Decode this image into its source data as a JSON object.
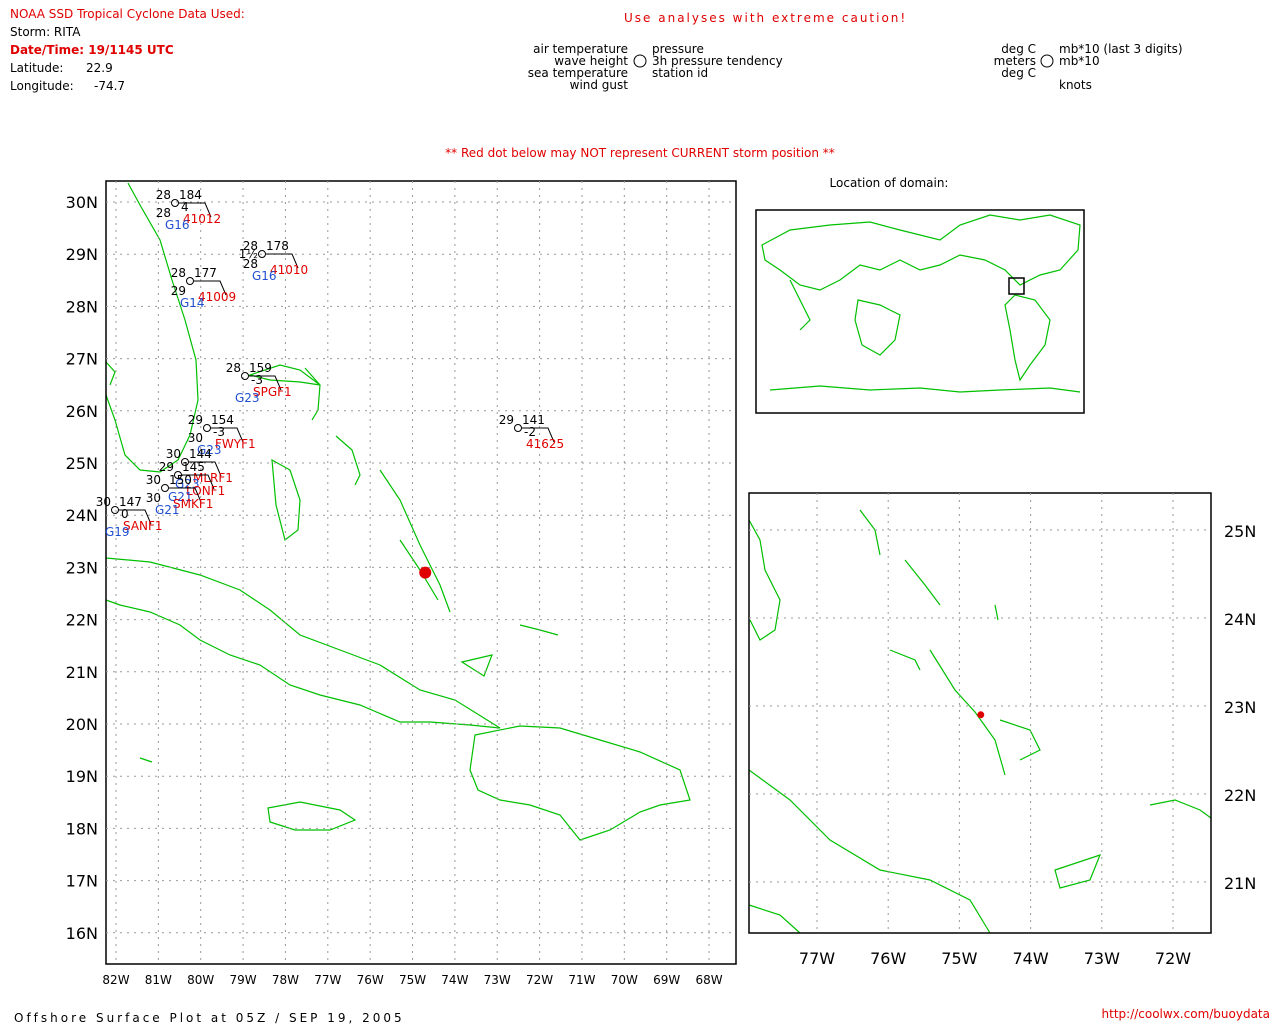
{
  "header": {
    "source": "NOAA SSD Tropical Cyclone Data Used:",
    "storm": "Storm: RITA",
    "datetime": "Date/Time: 19/1145 UTC",
    "latitude": {
      "label": "Latitude:",
      "value": 22.9
    },
    "longitude": {
      "label": "Longitude:",
      "value": -74.7
    },
    "caution": "Use analyses with extreme caution!"
  },
  "legend": {
    "left": [
      "air temperature",
      "wave height",
      "sea temperature",
      "wind gust"
    ],
    "right": [
      "pressure",
      "3h pressure tendency",
      "station id"
    ],
    "units_left": [
      "deg C",
      "meters",
      "deg C"
    ],
    "units_right": [
      "mb*10 (last 3 digits)",
      "mb*10",
      "knots"
    ]
  },
  "note": "** Red dot below may NOT represent CURRENT storm position **",
  "main_map": {
    "lat_ticks": [
      {
        "value": 30,
        "label": "30N"
      },
      {
        "value": 29,
        "label": "29N"
      },
      {
        "value": 28,
        "label": "28N"
      },
      {
        "value": 27,
        "label": "27N"
      },
      {
        "value": 26,
        "label": "26N"
      },
      {
        "value": 25,
        "label": "25N"
      },
      {
        "value": 24,
        "label": "24N"
      },
      {
        "value": 23,
        "label": "23N"
      },
      {
        "value": 22,
        "label": "22N"
      },
      {
        "value": 21,
        "label": "21N"
      },
      {
        "value": 20,
        "label": "20N"
      },
      {
        "value": 19,
        "label": "19N"
      },
      {
        "value": 18,
        "label": "18N"
      },
      {
        "value": 17,
        "label": "17N"
      },
      {
        "value": 16,
        "label": "16N"
      }
    ],
    "lon_ticks": [
      {
        "value": -82,
        "label": "82W"
      },
      {
        "value": -81,
        "label": "81W"
      },
      {
        "value": -80,
        "label": "80W"
      },
      {
        "value": -79,
        "label": "79W"
      },
      {
        "value": -78,
        "label": "78W"
      },
      {
        "value": -77,
        "label": "77W"
      },
      {
        "value": -76,
        "label": "76W"
      },
      {
        "value": -75,
        "label": "75W"
      },
      {
        "value": -74,
        "label": "74W"
      },
      {
        "value": -73,
        "label": "73W"
      },
      {
        "value": -72,
        "label": "72W"
      },
      {
        "value": -71,
        "label": "71W"
      },
      {
        "value": -70,
        "label": "70W"
      },
      {
        "value": -69,
        "label": "69W"
      },
      {
        "value": -68,
        "label": "68W"
      }
    ],
    "stations": [
      {
        "id": "41012",
        "air": "28",
        "pressure": "184",
        "tendency": "4",
        "sea": "28",
        "source": "G16"
      },
      {
        "id": "41010",
        "air": "28",
        "pressure": "178",
        "wave": "1½",
        "sea": "28",
        "source": "G16"
      },
      {
        "id": "41009",
        "air": "28",
        "pressure": "177",
        "sea": "29",
        "source": "G14"
      },
      {
        "id": "SPGF1",
        "air": "28",
        "pressure": "159",
        "tendency": "-3",
        "source": "G23"
      },
      {
        "id": "FWYF1",
        "air": "29",
        "pressure": "154",
        "sea": "30",
        "tendency": "-3",
        "source": "G23"
      },
      {
        "id": "MLRF1",
        "air": "30",
        "pressure": "144",
        "source": "G23"
      },
      {
        "id": "LONF1",
        "air": "29",
        "pressure": "145",
        "source": "G21"
      },
      {
        "id": "SMKF1",
        "air": "30",
        "pressure": "150",
        "sea": "30",
        "source": "G21"
      },
      {
        "id": "SANF1",
        "air": "30",
        "pressure": "147",
        "tendency": "0",
        "source": "G19"
      },
      {
        "id": "41625",
        "air": "29",
        "pressure": "141",
        "tendency": "-2"
      }
    ]
  },
  "locator": {
    "title": "Location of domain:"
  },
  "inset_map": {
    "lat_ticks": [
      {
        "value": 25,
        "label": "25N"
      },
      {
        "value": 24,
        "label": "24N"
      },
      {
        "value": 23,
        "label": "23N"
      },
      {
        "value": 22,
        "label": "22N"
      },
      {
        "value": 21,
        "label": "21N"
      }
    ],
    "lon_ticks": [
      {
        "value": -77,
        "label": "77W"
      },
      {
        "value": -76,
        "label": "76W"
      },
      {
        "value": -75,
        "label": "75W"
      },
      {
        "value": -74,
        "label": "74W"
      },
      {
        "value": -73,
        "label": "73W"
      },
      {
        "value": -72,
        "label": "72W"
      }
    ]
  },
  "footer": {
    "title": "Offshore Surface Plot at 05Z / SEP 19, 2005",
    "url": "http://coolwx.com/buoydata"
  }
}
